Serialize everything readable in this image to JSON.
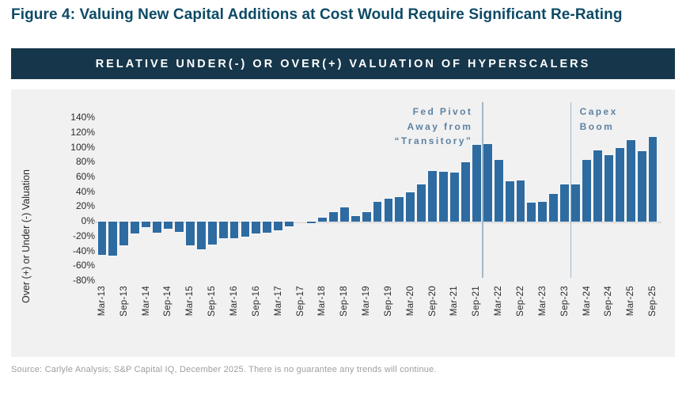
{
  "figure": {
    "title": "Figure 4: Valuing New Capital Additions at Cost Would Require Significant Re-Rating"
  },
  "chart": {
    "banner": "RELATIVE UNDER(-) OR OVER(+) VALUATION OF HYPERSCALERS",
    "y_axis_label": "Over (+) or Under (-) Valuation"
  },
  "annotations": {
    "fed_pivot": "Fed Pivot\nAway from\n“Transitory”",
    "capex_boom": "Capex\nBoom"
  },
  "source": "Source: Carlyle Analysis; S&P Capital IQ, December 2025. There is no guarantee any trends will continue.",
  "colors": {
    "bar": "#2E6BA1",
    "banner_bg": "#16364B",
    "title_text": "#0C4A66",
    "panel_bg": "#F1F1F2",
    "annotation_text": "#5E82A1",
    "annotation_line": "#A3B9C9",
    "zero_axis_line": "#D8D8D8",
    "source_text": "#9C9EA0"
  },
  "chart_data": {
    "type": "bar",
    "title": "RELATIVE UNDER(-) OR OVER(+) VALUATION OF HYPERSCALERS",
    "xlabel": "",
    "ylabel": "Over (+) or Under (-) Valuation",
    "ylim": [
      -80,
      140
    ],
    "yticks": [
      140,
      120,
      100,
      80,
      60,
      40,
      20,
      0,
      -20,
      -40,
      -60,
      -80
    ],
    "ytick_suffix": "%",
    "grid": false,
    "legend": "none",
    "x_ticks_shown_every": 2,
    "x": [
      "Mar-13",
      "Jun-13",
      "Sep-13",
      "Dec-13",
      "Mar-14",
      "Jun-14",
      "Sep-14",
      "Dec-14",
      "Mar-15",
      "Jun-15",
      "Sep-15",
      "Dec-15",
      "Mar-16",
      "Jun-16",
      "Sep-16",
      "Dec-16",
      "Mar-17",
      "Jun-17",
      "Sep-17",
      "Dec-17",
      "Mar-18",
      "Jun-18",
      "Sep-18",
      "Dec-18",
      "Mar-19",
      "Jun-19",
      "Sep-19",
      "Dec-19",
      "Mar-20",
      "Jun-20",
      "Sep-20",
      "Dec-20",
      "Mar-21",
      "Jun-21",
      "Sep-21",
      "Dec-21",
      "Mar-22",
      "Jun-22",
      "Sep-22",
      "Dec-22",
      "Mar-23",
      "Jun-23",
      "Sep-23",
      "Dec-23",
      "Mar-24",
      "Jun-24",
      "Sep-24",
      "Dec-24",
      "Mar-25",
      "Jun-25",
      "Sep-25"
    ],
    "values": [
      -45,
      -46,
      -32,
      -16,
      -7,
      -15,
      -9,
      -14,
      -32,
      -37,
      -31,
      -22,
      -22,
      -20,
      -16,
      -15,
      -12,
      -6,
      0,
      -2,
      6,
      13,
      19,
      8,
      13,
      27,
      31,
      33,
      40,
      50,
      69,
      67,
      66,
      80,
      104,
      105,
      84,
      55,
      56,
      26,
      27,
      38,
      50,
      50,
      83,
      96,
      90,
      100,
      110,
      95,
      115
    ],
    "annotations": [
      {
        "label": "Fed Pivot Away from “Transitory”",
        "line_between": [
          "Sep-21",
          "Dec-21"
        ],
        "after_index": 34
      },
      {
        "label": "Capex Boom",
        "line_between": [
          "Sep-23",
          "Dec-23"
        ],
        "after_index": 42
      }
    ]
  }
}
